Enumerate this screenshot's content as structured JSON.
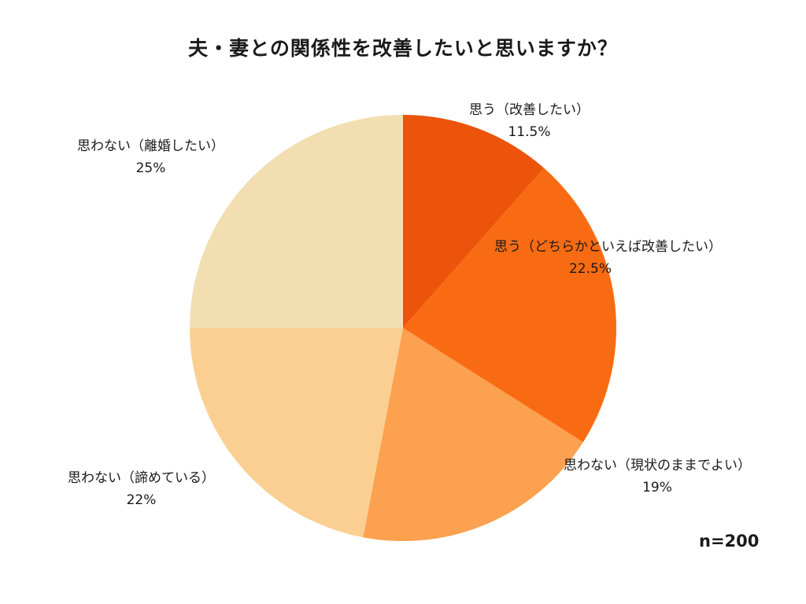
{
  "chart_data": {
    "type": "pie",
    "title": "夫・妻との関係性を改善したいと思いますか？",
    "categories": [
      "思う（改善したい）",
      "思う（どちらかといえば改善したい）",
      "思わない（現状のままでよい）",
      "思わない（諦めている）",
      "思わない（離婚したい）"
    ],
    "values": [
      11.5,
      22.5,
      19,
      22,
      25
    ],
    "value_labels": [
      "11.5%",
      "22.5%",
      "19%",
      "22%",
      "25%"
    ],
    "colors": [
      "#EB540A",
      "#F96B12",
      "#FBA14F",
      "#FBCF92",
      "#F3DEB2"
    ],
    "start_angle": "12 o'clock",
    "direction": "clockwise",
    "annotation": "n=200",
    "legend": "none (labels placed next to slices)"
  },
  "title": "夫・妻との関係性を改善したいと思いますか？",
  "sample_size": "n=200",
  "labels": [
    {
      "name": "思う（改善したい）",
      "pct": "11.5%"
    },
    {
      "name": "思う（どちらかといえば改善したい）",
      "pct": "22.5%"
    },
    {
      "name": "思わない（現状のままでよい）",
      "pct": "19%"
    },
    {
      "name": "思わない（諦めている）",
      "pct": "22%"
    },
    {
      "name": "思わない（離婚したい）",
      "pct": "25%"
    }
  ]
}
